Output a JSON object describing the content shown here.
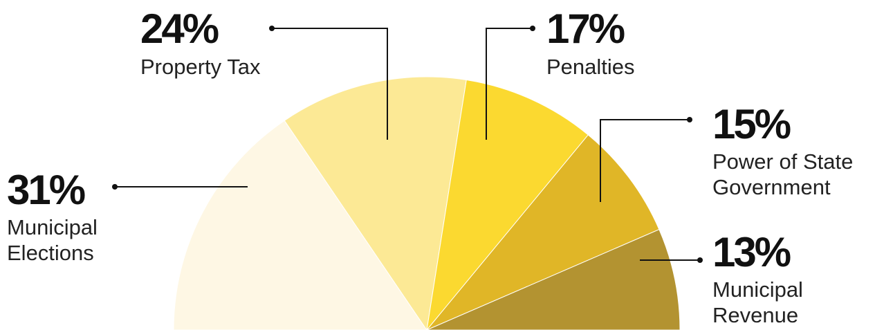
{
  "chart_data": {
    "type": "semi-donut",
    "categories": [
      "Municipal Elections",
      "Property Tax",
      "Penalties",
      "Power of State Government",
      "Municipal Revenue"
    ],
    "values": [
      31,
      24,
      17,
      15,
      13
    ],
    "value_labels": [
      "31%",
      "24%",
      "17%",
      "15%",
      "13%"
    ],
    "colors": [
      "#fef7e4",
      "#fce995",
      "#fbd930",
      "#e0b627",
      "#b39331"
    ]
  }
}
